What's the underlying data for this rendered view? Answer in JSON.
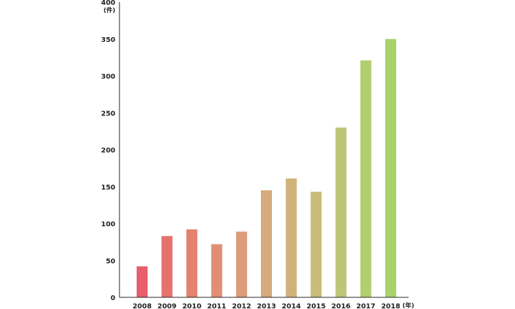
{
  "chart_data": {
    "type": "bar",
    "categories": [
      "2008",
      "2009",
      "2010",
      "2011",
      "2012",
      "2013",
      "2014",
      "2015",
      "2016",
      "2017",
      "2018"
    ],
    "values": [
      42,
      83,
      92,
      72,
      89,
      145,
      161,
      143,
      230,
      321,
      350
    ],
    "title": "",
    "xlabel": "",
    "ylabel": "",
    "y_unit": "(件)",
    "x_unit": "(年)",
    "ylim": [
      0,
      400
    ],
    "yticks": [
      "0",
      "50",
      "100",
      "150",
      "200",
      "250",
      "300",
      "350",
      "400"
    ],
    "grid": false,
    "legend": "none",
    "colors": [
      "#e65f6b",
      "#e6726e",
      "#e4816f",
      "#e08f74",
      "#dc9c79",
      "#d6aa7a",
      "#d1b37a",
      "#c7bc79",
      "#bcc676",
      "#b3cd71",
      "#aad26b"
    ]
  }
}
